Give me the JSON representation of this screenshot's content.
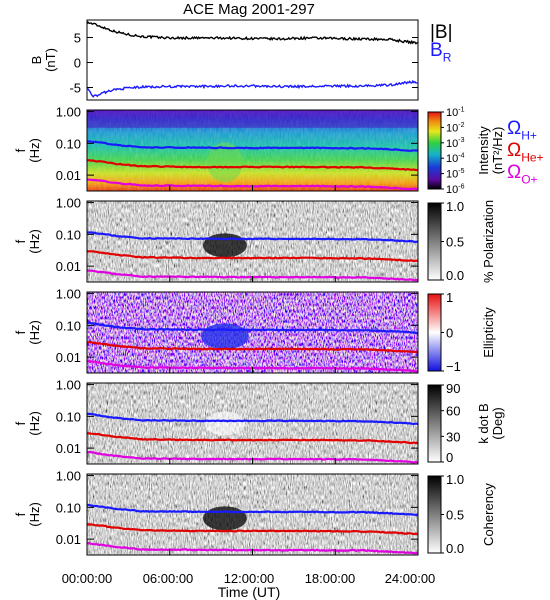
{
  "chart_data": {
    "type": "multi-panel spectrogram",
    "title": "ACE Mag 2001-297",
    "xlabel": "Time (UT)",
    "x_ticks": [
      "00:00:00",
      "06:00:00",
      "12:00:00",
      "18:00:00",
      "24:00:00"
    ],
    "xlim_hours": [
      0,
      24
    ],
    "legend_top": {
      "b": "|B|",
      "br_main": "B",
      "br_sub": "R"
    },
    "legend_freqs": [
      {
        "main": "Ω",
        "sub": "H+",
        "color": "#1a1aff"
      },
      {
        "main": "Ω",
        "sub": "He+",
        "color": "#e00000"
      },
      {
        "main": "Ω",
        "sub": "O+",
        "color": "#e000e0"
      }
    ],
    "colors": {
      "b": "#000000",
      "br": "#1a1aff",
      "h": "#1a1aff",
      "he": "#e00000",
      "o": "#e000e0"
    },
    "panel_b": {
      "ylabel_main": "B",
      "ylabel_unit": "(nT)",
      "y_ticks": [
        "5",
        "0",
        "-5"
      ],
      "ylim": [
        -7.5,
        8.5
      ],
      "series": [
        {
          "key": "b",
          "hours": [
            0,
            0.5,
            1,
            2,
            3,
            4,
            6,
            8,
            10,
            12,
            14,
            16,
            18,
            20,
            22,
            23,
            24
          ],
          "values": [
            8.0,
            7.7,
            7.2,
            6.2,
            5.6,
            5.2,
            4.9,
            4.9,
            4.9,
            4.8,
            4.7,
            4.9,
            4.8,
            4.7,
            4.6,
            4.2,
            3.9
          ]
        },
        {
          "key": "br",
          "hours": [
            0,
            0.5,
            1,
            1.5,
            2,
            3,
            4,
            6,
            8,
            10,
            12,
            14,
            16,
            18,
            20,
            22,
            23,
            24
          ],
          "values": [
            -5.2,
            -6.8,
            -6.3,
            -5.8,
            -5.4,
            -5.1,
            -4.9,
            -4.8,
            -4.8,
            -4.7,
            -4.7,
            -4.8,
            -4.8,
            -4.7,
            -4.7,
            -4.5,
            -4.0,
            -3.9
          ]
        }
      ]
    },
    "freq_axis": {
      "ylabel_main": "f",
      "ylabel_unit": "(Hz)",
      "y_ticks": [
        "1.00",
        "0.10",
        "0.01"
      ],
      "ylim_log10": [
        -2.5,
        0.05
      ]
    },
    "gyrofrequencies_hz": {
      "hours": [
        0,
        2,
        4,
        8,
        12,
        16,
        20,
        22,
        24
      ],
      "h": [
        0.12,
        0.09,
        0.075,
        0.073,
        0.072,
        0.072,
        0.07,
        0.065,
        0.058
      ],
      "he": [
        0.03,
        0.023,
        0.019,
        0.018,
        0.018,
        0.018,
        0.0175,
        0.016,
        0.0145
      ],
      "o": [
        0.0075,
        0.0057,
        0.0047,
        0.0046,
        0.0045,
        0.0045,
        0.0044,
        0.004,
        0.0036
      ]
    },
    "panels": [
      {
        "id": "intensity",
        "colorbar_label": "Intensity",
        "colorbar_unit": "(nT²/Hz)",
        "colormap": "rainbow",
        "tick_labels": [
          {
            "base": "10",
            "exp": "-1"
          },
          {
            "base": "10",
            "exp": "-2"
          },
          {
            "base": "10",
            "exp": "-3"
          },
          {
            "base": "10",
            "exp": "-4"
          },
          {
            "base": "10",
            "exp": "-5"
          },
          {
            "base": "10",
            "exp": "-6"
          }
        ]
      },
      {
        "id": "polarization",
        "colorbar_label": "% Polarization",
        "colormap": "gray",
        "tick_labels": [
          {
            "base": "1.0"
          },
          {
            "base": "0.5"
          },
          {
            "base": "0.0"
          }
        ]
      },
      {
        "id": "ellipticity",
        "colorbar_label": "Ellipticity",
        "colormap": "bluewhitered",
        "tick_labels": [
          {
            "base": "1"
          },
          {
            "base": "0"
          },
          {
            "base": "−1"
          }
        ]
      },
      {
        "id": "kdotb",
        "colorbar_label": "k dot B",
        "colorbar_unit": "(Deg)",
        "colormap": "gray",
        "tick_labels": [
          {
            "base": "90"
          },
          {
            "base": "60"
          },
          {
            "base": "30"
          },
          {
            "base": "0"
          }
        ]
      },
      {
        "id": "coherency",
        "colorbar_label": "Coherency",
        "colormap": "gray",
        "tick_labels": [
          {
            "base": "1.0"
          },
          {
            "base": "0.5"
          },
          {
            "base": "0.0"
          }
        ]
      }
    ]
  }
}
